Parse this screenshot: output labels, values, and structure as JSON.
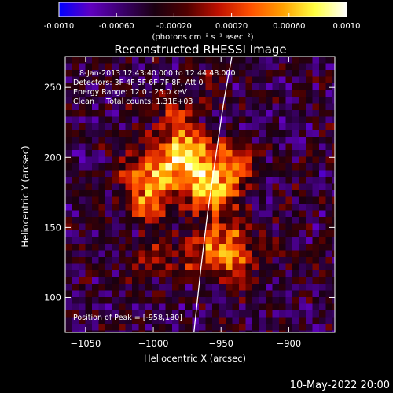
{
  "colorbar": {
    "ticks": [
      "-0.0010",
      "-0.00060",
      "-0.00020",
      "0.00020",
      "0.00060",
      "0.0010"
    ],
    "tick_values": [
      -0.001,
      -0.0006,
      -0.0002,
      0.0002,
      0.0006,
      0.001
    ],
    "range": [
      -0.001,
      0.001
    ],
    "unit_label": "(photons cm⁻² s⁻¹ asec⁻²)",
    "colormap": [
      "#0000ff",
      "#6000c0",
      "#3a006a",
      "#1a0010",
      "#500000",
      "#c01000",
      "#ff5000",
      "#ffa000",
      "#ffff40",
      "#ffffff"
    ]
  },
  "chart_data": {
    "type": "heatmap",
    "title": "Reconstructed RHESSI Image",
    "xlabel": "Heliocentric X (arcsec)",
    "ylabel": "Heliocentric Y (arcsec)",
    "xlim": [
      -1065,
      -866
    ],
    "ylim": [
      75,
      272
    ],
    "x_ticks": [
      -1050,
      -1000,
      -950,
      -900
    ],
    "y_ticks": [
      100,
      150,
      200,
      250
    ],
    "annotations": {
      "time": "8-Jan-2013 12:43:40.000 to 12:44:48.000",
      "detectors": "Detectors: 3F 4F 5F 6F 7F 8F, Att 0",
      "energy": "Energy Range: 12.0 - 25.0 keV",
      "clean": "Clean     Total counts: 1.31E+03",
      "peak": "Position of Peak = [-958,180]"
    },
    "peak": [
      -958,
      180
    ],
    "limb_curve": [
      [
        -970,
        75
      ],
      [
        -965,
        120
      ],
      [
        -960,
        160
      ],
      [
        -954,
        200
      ],
      [
        -948,
        240
      ],
      [
        -942,
        272
      ]
    ]
  },
  "footer_date": "10-May-2022 20:00"
}
